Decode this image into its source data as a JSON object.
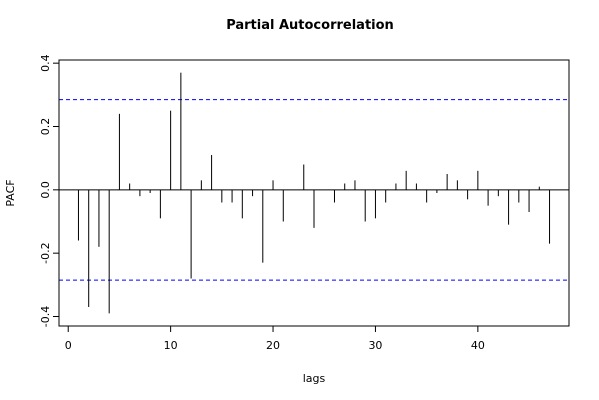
{
  "chart_data": {
    "type": "bar",
    "title": "Partial Autocorrelation",
    "xlabel": "lags",
    "ylabel": "PACF",
    "xlim": [
      -0.9,
      48.9
    ],
    "ylim": [
      -0.43,
      0.41
    ],
    "x_ticks": [
      0,
      10,
      20,
      30,
      40
    ],
    "y_ticks": [
      -0.4,
      -0.2,
      0.0,
      0.2,
      0.4
    ],
    "y_tick_labels": [
      "-0.4",
      "-0.2",
      "0.0",
      "0.2",
      "0.4"
    ],
    "confidence_bound": 0.285,
    "confidence_color": "#0000ff",
    "grid": false,
    "lags": [
      1,
      2,
      3,
      4,
      5,
      6,
      7,
      8,
      9,
      10,
      11,
      12,
      13,
      14,
      15,
      16,
      17,
      18,
      19,
      20,
      21,
      22,
      23,
      24,
      25,
      26,
      27,
      28,
      29,
      30,
      31,
      32,
      33,
      34,
      35,
      36,
      37,
      38,
      39,
      40,
      41,
      42,
      43,
      44,
      45,
      46,
      47
    ],
    "values": [
      -0.16,
      -0.37,
      -0.18,
      -0.39,
      0.24,
      0.02,
      -0.02,
      -0.01,
      -0.09,
      0.25,
      0.37,
      -0.28,
      0.03,
      0.11,
      -0.04,
      -0.04,
      -0.09,
      -0.02,
      -0.23,
      0.03,
      -0.1,
      0.0,
      0.08,
      -0.12,
      0.0,
      -0.04,
      0.02,
      0.03,
      -0.1,
      -0.09,
      -0.04,
      0.02,
      0.06,
      0.02,
      -0.04,
      -0.01,
      0.05,
      0.03,
      -0.03,
      0.06,
      -0.05,
      -0.02,
      -0.11,
      -0.04,
      -0.07,
      0.01,
      -0.17
    ]
  }
}
